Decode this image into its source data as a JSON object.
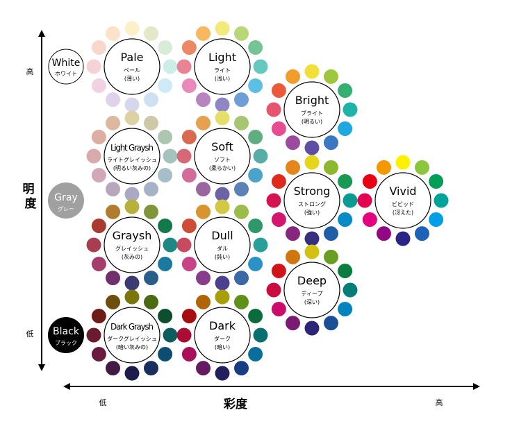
{
  "axes": {
    "brightness_label": "明度",
    "brightness_high": "高",
    "brightness_low": "低",
    "saturation_label": "彩度",
    "saturation_low": "低",
    "saturation_high": "高",
    "axis_color": "#000000"
  },
  "neutrals": [
    {
      "id": "white",
      "name": "White",
      "kana": "ホワイト",
      "fill": "#ffffff",
      "stroke": "#000000",
      "text": "#000000"
    },
    {
      "id": "gray",
      "name": "Gray",
      "kana": "グレー",
      "fill": "#a0a0a0",
      "stroke": "#a0a0a0",
      "text": "#ffffff"
    },
    {
      "id": "black",
      "name": "Black",
      "kana": "ブラック",
      "fill": "#000000",
      "stroke": "#000000",
      "text": "#ffffff"
    }
  ],
  "tones": [
    {
      "id": "pale",
      "name": "Pale",
      "kana": "ペール",
      "meaning": "(薄い)",
      "colors": [
        "#e4e8c8",
        "#d8ecd8",
        "#cdeee6",
        "#cdeaf6",
        "#cfe0f2",
        "#d6d6ee",
        "#e0d2ea",
        "#f0d2e2",
        "#f6d2d6",
        "#f8d8cc",
        "#fbe2c8",
        "#fbf0c8"
      ]
    },
    {
      "id": "light",
      "name": "Light",
      "kana": "ライト",
      "meaning": "(浅い)",
      "colors": [
        "#b8d878",
        "#74c496",
        "#66c9c0",
        "#5cc0e4",
        "#6d9ed6",
        "#8f86c6",
        "#b884c0",
        "#ea8ab8",
        "#ea8494",
        "#ec8866",
        "#f6b860",
        "#f2ea7c"
      ]
    },
    {
      "id": "bright",
      "name": "Bright",
      "kana": "ブライト",
      "meaning": "(明るい)",
      "colors": [
        "#9dc73f",
        "#36b070",
        "#1fb2ab",
        "#1fa8e0",
        "#3a78c4",
        "#5e4ea4",
        "#9c4a9e",
        "#e84c92",
        "#e6546e",
        "#ea5a3a",
        "#f39c2e",
        "#f0e038"
      ]
    },
    {
      "id": "light-grayish",
      "name": "Light Graysh",
      "kana": "ライトグレイッシュ",
      "meaning": "(明るい灰みの)",
      "colors": [
        "#cdc8a8",
        "#aec6b0",
        "#a6c2bc",
        "#a6bec8",
        "#a6b2c8",
        "#aaa8c2",
        "#b8a6bc",
        "#d2a8b8",
        "#d8aaae",
        "#dcaea4",
        "#dcb8a0",
        "#dcd2a4"
      ]
    },
    {
      "id": "soft",
      "name": "Soft",
      "kana": "ソフト",
      "meaning": "(柔らかい)",
      "colors": [
        "#a6c670",
        "#5fae80",
        "#58aea6",
        "#4aa4c8",
        "#5a82b8",
        "#6c62a6",
        "#9a66a0",
        "#d26c9a",
        "#d66878",
        "#d86a52",
        "#e6a050",
        "#e6de6a"
      ]
    },
    {
      "id": "strong",
      "name": "Strong",
      "kana": "ストロング",
      "meaning": "(強い)",
      "colors": [
        "#8cb830",
        "#189a54",
        "#0b9a92",
        "#078cc6",
        "#1f5ea6",
        "#37307e",
        "#86267e",
        "#d4166e",
        "#d41450",
        "#df2a1e",
        "#e4861a",
        "#e6d61a"
      ]
    },
    {
      "id": "vivid",
      "name": "Vivid",
      "kana": "ビビッド",
      "meaning": "(冴えた)",
      "colors": [
        "#8cc63f",
        "#009e56",
        "#00a29a",
        "#009fe8",
        "#1d62b4",
        "#2a2484",
        "#920783",
        "#e4007f",
        "#e5004f",
        "#e60012",
        "#f39800",
        "#fff100"
      ]
    },
    {
      "id": "grayish",
      "name": "Graysh",
      "kana": "グレイッシュ",
      "meaning": "(灰みの)",
      "colors": [
        "#7e9638",
        "#127a48",
        "#1e8884",
        "#1a7aa0",
        "#2a5e8a",
        "#3c3a72",
        "#70306c",
        "#a43c6c",
        "#a83e50",
        "#a83a30",
        "#b07c30",
        "#b8b03c"
      ]
    },
    {
      "id": "dull",
      "name": "Dull",
      "kana": "ダル",
      "meaning": "(鈍い)",
      "colors": [
        "#9cbc4c",
        "#2e9868",
        "#2a9e98",
        "#2a92c6",
        "#3a68a6",
        "#4c4090",
        "#883c8c",
        "#c64486",
        "#c84a60",
        "#cc4c36",
        "#d8942e",
        "#d2c844"
      ]
    },
    {
      "id": "deep",
      "name": "Deep",
      "kana": "ディープ",
      "meaning": "(深い)",
      "colors": [
        "#6a9e22",
        "#0a7e40",
        "#067e78",
        "#0484be",
        "#1a4e96",
        "#2c2474",
        "#7a1a72",
        "#cc0c6a",
        "#ca0c40",
        "#d0141a",
        "#d0760e",
        "#d2c012"
      ]
    },
    {
      "id": "dark-grayish",
      "name": "Dark Graysh",
      "kana": "ダークグレイッシュ",
      "meaning": "(暗い灰みの)",
      "colors": [
        "#4a6a14",
        "#0c4e2e",
        "#0c5e5e",
        "#0c4e72",
        "#182e5c",
        "#1e1c4a",
        "#441a42",
        "#6a1a3e",
        "#6c1a2e",
        "#6e1c16",
        "#6e4e0e",
        "#7a760c"
      ]
    },
    {
      "id": "dark",
      "name": "Dark",
      "kana": "ダーク",
      "meaning": "(暗い)",
      "colors": [
        "#5e901a",
        "#0a6c3a",
        "#07706e",
        "#0a6e9c",
        "#163e80",
        "#24205e",
        "#661a62",
        "#a80e5a",
        "#aa0c36",
        "#a80c10",
        "#b0640a",
        "#a89e0a"
      ]
    }
  ]
}
